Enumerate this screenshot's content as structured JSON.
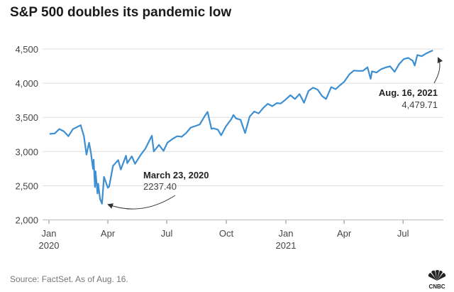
{
  "title": "S&P 500 doubles its pandemic low",
  "source": "Source: FactSet. As of Aug. 16.",
  "logo": "CNBC",
  "chart_data": {
    "type": "line",
    "title": "S&P 500 doubles its pandemic low",
    "xlabel": "",
    "ylabel": "",
    "ylim": [
      2000,
      4500
    ],
    "xlim": [
      "2020-01-01",
      "2021-08-31"
    ],
    "grid": true,
    "line_color": "#3d8fd1",
    "yticks": [
      {
        "value": 2000,
        "label": "2,000"
      },
      {
        "value": 2500,
        "label": "2,500"
      },
      {
        "value": 3000,
        "label": "3,000"
      },
      {
        "value": 3500,
        "label": "3,500"
      },
      {
        "value": 4000,
        "label": "4,000"
      },
      {
        "value": 4500,
        "label": "4,500"
      }
    ],
    "xticks": [
      {
        "date": "2020-01-01",
        "label": "Jan",
        "sub": "2020"
      },
      {
        "date": "2020-04-01",
        "label": "Apr",
        "sub": ""
      },
      {
        "date": "2020-07-01",
        "label": "Jul",
        "sub": ""
      },
      {
        "date": "2020-10-01",
        "label": "Oct",
        "sub": ""
      },
      {
        "date": "2021-01-01",
        "label": "Jan",
        "sub": "2021"
      },
      {
        "date": "2021-04-01",
        "label": "Apr",
        "sub": ""
      },
      {
        "date": "2021-07-01",
        "label": "Jul",
        "sub": ""
      }
    ],
    "annotations": [
      {
        "date": "2020-03-23",
        "value": 2237.4,
        "label": "March 23, 2020",
        "value_label": "2237.40"
      },
      {
        "date": "2021-08-16",
        "value": 4479.71,
        "label": "Aug. 16, 2021",
        "value_label": "4,479.71"
      }
    ],
    "points": [
      [
        "2020-01-02",
        3258
      ],
      [
        "2020-01-10",
        3265
      ],
      [
        "2020-01-17",
        3330
      ],
      [
        "2020-01-24",
        3295
      ],
      [
        "2020-01-31",
        3225
      ],
      [
        "2020-02-07",
        3328
      ],
      [
        "2020-02-19",
        3386
      ],
      [
        "2020-02-24",
        3225
      ],
      [
        "2020-02-28",
        2954
      ],
      [
        "2020-03-03",
        3130
      ],
      [
        "2020-03-06",
        2972
      ],
      [
        "2020-03-09",
        2746
      ],
      [
        "2020-03-10",
        2882
      ],
      [
        "2020-03-12",
        2480
      ],
      [
        "2020-03-13",
        2711
      ],
      [
        "2020-03-16",
        2386
      ],
      [
        "2020-03-17",
        2529
      ],
      [
        "2020-03-20",
        2305
      ],
      [
        "2020-03-23",
        2237.4
      ],
      [
        "2020-03-26",
        2630
      ],
      [
        "2020-04-01",
        2470
      ],
      [
        "2020-04-03",
        2489
      ],
      [
        "2020-04-09",
        2790
      ],
      [
        "2020-04-17",
        2875
      ],
      [
        "2020-04-21",
        2737
      ],
      [
        "2020-04-29",
        2940
      ],
      [
        "2020-05-01",
        2830
      ],
      [
        "2020-05-08",
        2930
      ],
      [
        "2020-05-13",
        2820
      ],
      [
        "2020-05-22",
        2955
      ],
      [
        "2020-05-29",
        3044
      ],
      [
        "2020-06-08",
        3232
      ],
      [
        "2020-06-11",
        3002
      ],
      [
        "2020-06-19",
        3098
      ],
      [
        "2020-06-26",
        3009
      ],
      [
        "2020-07-02",
        3130
      ],
      [
        "2020-07-10",
        3185
      ],
      [
        "2020-07-17",
        3225
      ],
      [
        "2020-07-24",
        3216
      ],
      [
        "2020-07-31",
        3271
      ],
      [
        "2020-08-07",
        3351
      ],
      [
        "2020-08-14",
        3372
      ],
      [
        "2020-08-21",
        3397
      ],
      [
        "2020-08-28",
        3508
      ],
      [
        "2020-09-02",
        3580
      ],
      [
        "2020-09-08",
        3332
      ],
      [
        "2020-09-11",
        3341
      ],
      [
        "2020-09-18",
        3319
      ],
      [
        "2020-09-23",
        3237
      ],
      [
        "2020-09-30",
        3363
      ],
      [
        "2020-10-09",
        3477
      ],
      [
        "2020-10-12",
        3535
      ],
      [
        "2020-10-16",
        3484
      ],
      [
        "2020-10-23",
        3465
      ],
      [
        "2020-10-30",
        3270
      ],
      [
        "2020-11-06",
        3510
      ],
      [
        "2020-11-13",
        3585
      ],
      [
        "2020-11-20",
        3558
      ],
      [
        "2020-11-27",
        3638
      ],
      [
        "2020-12-04",
        3699
      ],
      [
        "2020-12-11",
        3663
      ],
      [
        "2020-12-18",
        3709
      ],
      [
        "2020-12-24",
        3703
      ],
      [
        "2020-12-31",
        3756
      ],
      [
        "2021-01-08",
        3824
      ],
      [
        "2021-01-15",
        3768
      ],
      [
        "2021-01-22",
        3841
      ],
      [
        "2021-01-29",
        3714
      ],
      [
        "2021-02-05",
        3887
      ],
      [
        "2021-02-12",
        3934
      ],
      [
        "2021-02-19",
        3906
      ],
      [
        "2021-02-26",
        3811
      ],
      [
        "2021-03-04",
        3768
      ],
      [
        "2021-03-12",
        3943
      ],
      [
        "2021-03-19",
        3913
      ],
      [
        "2021-03-26",
        3974
      ],
      [
        "2021-04-01",
        4020
      ],
      [
        "2021-04-09",
        4129
      ],
      [
        "2021-04-16",
        4185
      ],
      [
        "2021-04-23",
        4180
      ],
      [
        "2021-04-30",
        4181
      ],
      [
        "2021-05-07",
        4233
      ],
      [
        "2021-05-12",
        4063
      ],
      [
        "2021-05-14",
        4174
      ],
      [
        "2021-05-21",
        4156
      ],
      [
        "2021-05-28",
        4204
      ],
      [
        "2021-06-04",
        4230
      ],
      [
        "2021-06-11",
        4247
      ],
      [
        "2021-06-18",
        4166
      ],
      [
        "2021-06-25",
        4281
      ],
      [
        "2021-07-02",
        4352
      ],
      [
        "2021-07-09",
        4370
      ],
      [
        "2021-07-16",
        4327
      ],
      [
        "2021-07-19",
        4258
      ],
      [
        "2021-07-23",
        4412
      ],
      [
        "2021-07-30",
        4395
      ],
      [
        "2021-08-06",
        4437
      ],
      [
        "2021-08-13",
        4468
      ],
      [
        "2021-08-16",
        4479.71
      ]
    ]
  }
}
